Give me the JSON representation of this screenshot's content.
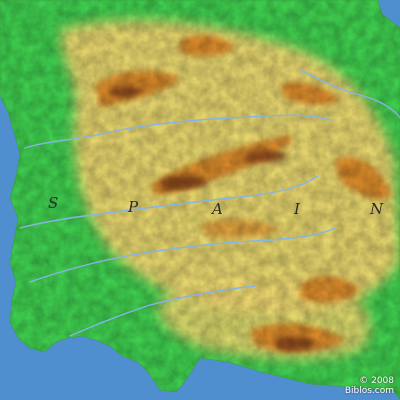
{
  "map": {
    "label_letters": [
      "S",
      "P",
      "A",
      "I",
      "N"
    ],
    "credit_year": "© 2008",
    "credit_site": "Biblos.com"
  },
  "colors": {
    "sea": "#4f8fd0",
    "lowland": "#3fcf4f",
    "plateau": "#f0d770",
    "highland": "#d98a2a",
    "peak": "#8b4a1a",
    "river": "#86b4e6"
  }
}
